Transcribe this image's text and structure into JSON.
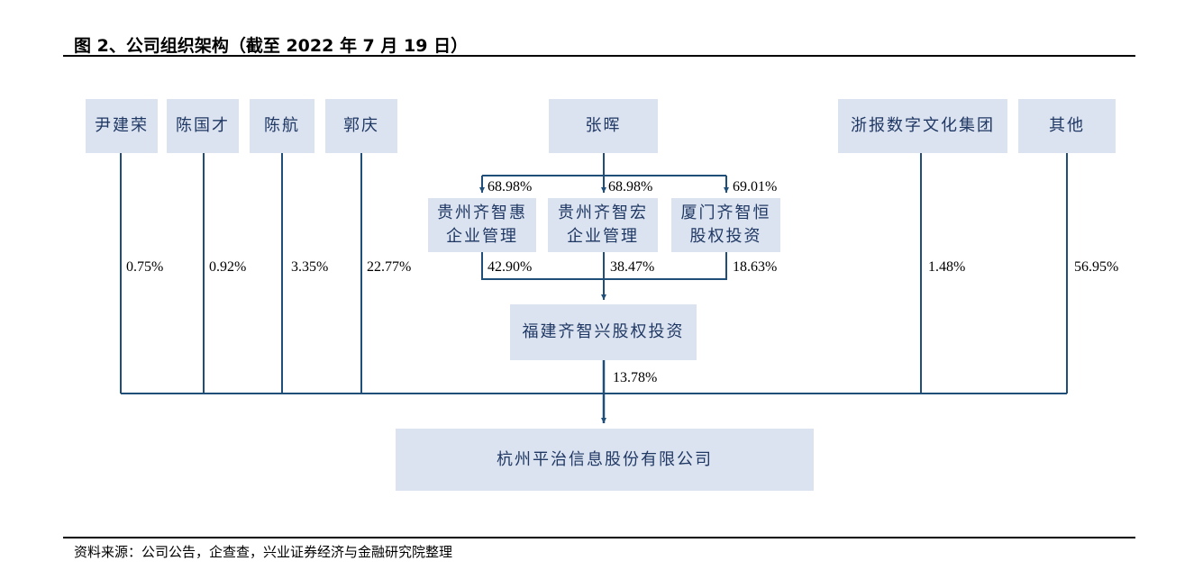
{
  "title": "图 2、公司组织架构（截至 2022 年 7 月 19 日）",
  "colors": {
    "box": "#dce3f0",
    "line": "#1f4e79",
    "text": "#1f3864"
  },
  "shareholders": [
    {
      "name": "尹建荣",
      "pct": "0.75%"
    },
    {
      "name": "陈国才",
      "pct": "0.92%"
    },
    {
      "name": "陈航",
      "pct": "3.35%"
    },
    {
      "name": "郭庆",
      "pct": "22.77%"
    },
    {
      "name": "浙报数字文化集团",
      "pct": "1.48%"
    },
    {
      "name": "其他",
      "pct": "56.95%"
    }
  ],
  "controller": "张晖",
  "intermediates": [
    {
      "name_l1": "贵州齐智惠",
      "name_l2": "企业管理",
      "in_pct": "68.98%",
      "out_pct": "42.90%"
    },
    {
      "name_l1": "贵州齐智宏",
      "name_l2": "企业管理",
      "in_pct": "68.98%",
      "out_pct": "38.47%"
    },
    {
      "name_l1": "厦门齐智恒",
      "name_l2": "股权投资",
      "in_pct": "69.01%",
      "out_pct": "18.63%"
    }
  ],
  "holding": {
    "name": "福建齐智兴股权投资",
    "pct": "13.78%"
  },
  "company": "杭州平治信息股份有限公司",
  "source": "资料来源：公司公告，企查查，兴业证券经济与金融研究院整理"
}
